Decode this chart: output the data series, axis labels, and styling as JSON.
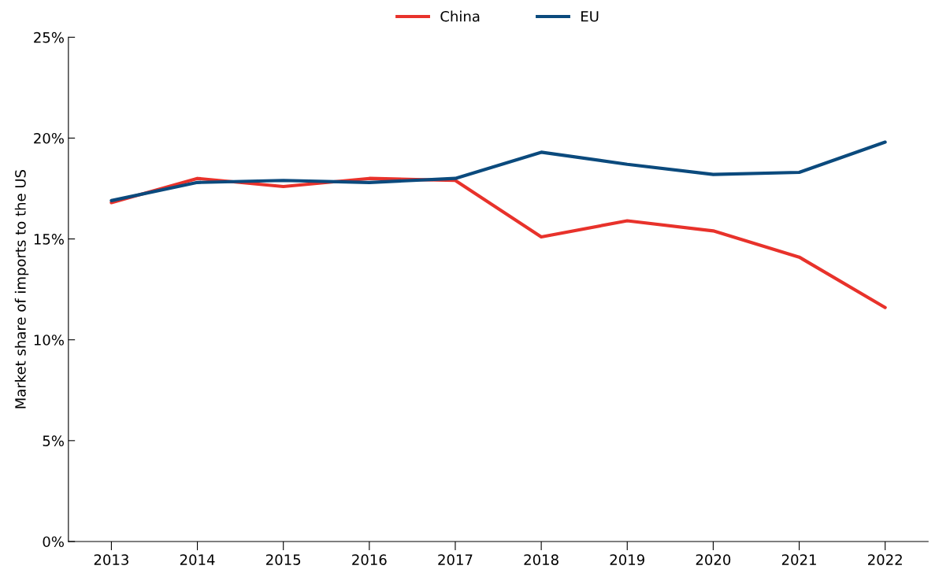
{
  "chart_data": {
    "type": "line",
    "ylabel": "Market share of imports to the US",
    "categories": [
      "2013",
      "2014",
      "2015",
      "2016",
      "2017",
      "2018",
      "2019",
      "2020",
      "2021",
      "2022"
    ],
    "series": [
      {
        "name": "China",
        "color": "#e8322b",
        "values": [
          16.8,
          18.0,
          17.6,
          18.0,
          17.9,
          15.1,
          15.9,
          15.4,
          14.1,
          11.6
        ]
      },
      {
        "name": "EU",
        "color": "#0b4a7d",
        "values": [
          16.9,
          17.8,
          17.9,
          17.8,
          18.0,
          19.3,
          18.7,
          18.2,
          18.3,
          19.8
        ]
      }
    ],
    "ylim": [
      0,
      25
    ],
    "yticks": [
      {
        "value": 0,
        "label": "0%"
      },
      {
        "value": 5,
        "label": "5%"
      },
      {
        "value": 10,
        "label": "10%"
      },
      {
        "value": 15,
        "label": "15%"
      },
      {
        "value": 20,
        "label": "20%"
      },
      {
        "value": 25,
        "label": "25%"
      }
    ],
    "grid": false,
    "legend": "top",
    "marker": "none",
    "line_style": "solid"
  }
}
